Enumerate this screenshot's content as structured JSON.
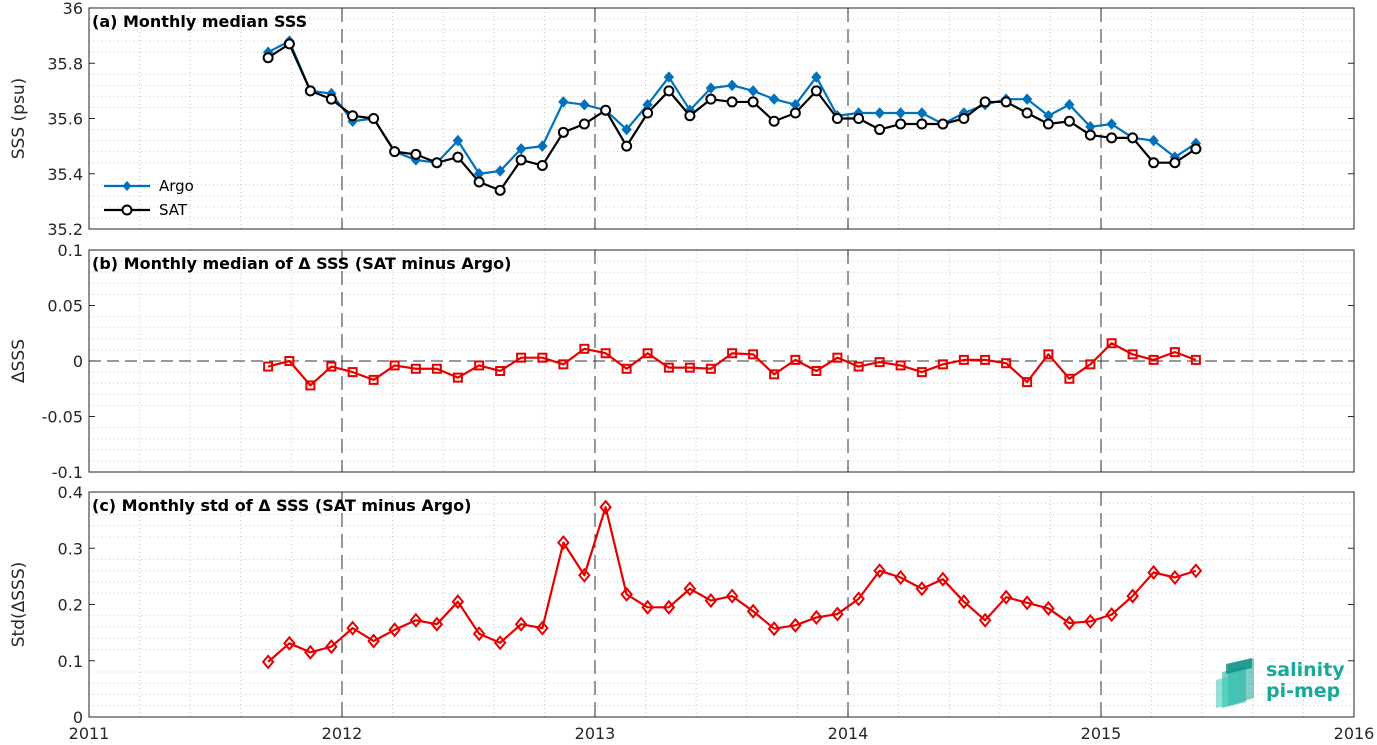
{
  "chart_data": [
    {
      "id": "a",
      "type": "line",
      "title": "(a) Monthly median SSS",
      "ylabel": "SSS (psu)",
      "xlim": [
        2011,
        2016
      ],
      "ylim": [
        35.2,
        36
      ],
      "yticks": [
        "35.2",
        "35.4",
        "35.6",
        "35.8",
        "36"
      ],
      "x": [
        2011.708,
        2011.792,
        2011.875,
        2011.958,
        2012.042,
        2012.125,
        2012.208,
        2012.292,
        2012.375,
        2012.458,
        2012.542,
        2012.625,
        2012.708,
        2012.792,
        2012.875,
        2012.958,
        2013.042,
        2013.125,
        2013.208,
        2013.292,
        2013.375,
        2013.458,
        2013.542,
        2013.625,
        2013.708,
        2013.792,
        2013.875,
        2013.958,
        2014.042,
        2014.125,
        2014.208,
        2014.292,
        2014.375,
        2014.458,
        2014.542,
        2014.625,
        2014.708,
        2014.792,
        2014.875,
        2014.958,
        2015.042,
        2015.125,
        2015.208,
        2015.292,
        2015.375
      ],
      "series": [
        {
          "name": "Argo",
          "color": "#0072bd",
          "marker": "diamond-filled",
          "values": [
            35.84,
            35.88,
            35.7,
            35.69,
            35.59,
            35.6,
            35.48,
            35.45,
            35.44,
            35.52,
            35.4,
            35.41,
            35.49,
            35.5,
            35.66,
            35.65,
            35.63,
            35.56,
            35.65,
            35.75,
            35.63,
            35.71,
            35.72,
            35.7,
            35.67,
            35.65,
            35.75,
            35.61,
            35.62,
            35.62,
            35.62,
            35.62,
            35.58,
            35.62,
            35.65,
            35.67,
            35.67,
            35.61,
            35.65,
            35.57,
            35.58,
            35.53,
            35.52,
            35.46,
            35.51
          ]
        },
        {
          "name": "SAT",
          "color": "#000000",
          "marker": "circle-open",
          "values": [
            35.82,
            35.87,
            35.7,
            35.67,
            35.61,
            35.6,
            35.48,
            35.47,
            35.44,
            35.46,
            35.37,
            35.34,
            35.45,
            35.43,
            35.55,
            35.58,
            35.63,
            35.5,
            35.62,
            35.7,
            35.61,
            35.67,
            35.66,
            35.66,
            35.59,
            35.62,
            35.7,
            35.6,
            35.6,
            35.56,
            35.58,
            35.58,
            35.58,
            35.6,
            35.66,
            35.66,
            35.62,
            35.58,
            35.59,
            35.54,
            35.53,
            35.53,
            35.44,
            35.44,
            35.49
          ]
        }
      ],
      "legend": "lower-left"
    },
    {
      "id": "b",
      "type": "line",
      "title": "(b) Monthly median of Δ SSS (SAT minus Argo)",
      "ylabel": "ΔSSS",
      "xlim": [
        2011,
        2016
      ],
      "ylim": [
        -0.1,
        0.1
      ],
      "yticks": [
        "-0.1",
        "-0.05",
        "0",
        "0.05",
        "0.1"
      ],
      "reference_line": 0,
      "x": [
        2011.708,
        2011.792,
        2011.875,
        2011.958,
        2012.042,
        2012.125,
        2012.208,
        2012.292,
        2012.375,
        2012.458,
        2012.542,
        2012.625,
        2012.708,
        2012.792,
        2012.875,
        2012.958,
        2013.042,
        2013.125,
        2013.208,
        2013.292,
        2013.375,
        2013.458,
        2013.542,
        2013.625,
        2013.708,
        2013.792,
        2013.875,
        2013.958,
        2014.042,
        2014.125,
        2014.208,
        2014.292,
        2014.375,
        2014.458,
        2014.542,
        2014.625,
        2014.708,
        2014.792,
        2014.875,
        2014.958,
        2015.042,
        2015.125,
        2015.208,
        2015.292,
        2015.375
      ],
      "series": [
        {
          "color": "#e60000",
          "marker": "square-open",
          "values": [
            -0.005,
            0.0,
            -0.022,
            -0.005,
            -0.01,
            -0.017,
            -0.004,
            -0.007,
            -0.007,
            -0.015,
            -0.004,
            -0.009,
            0.003,
            0.003,
            -0.003,
            0.011,
            0.007,
            -0.007,
            0.007,
            -0.006,
            -0.006,
            -0.007,
            0.007,
            0.006,
            -0.012,
            0.001,
            -0.009,
            0.003,
            -0.005,
            -0.001,
            -0.004,
            -0.01,
            -0.003,
            0.001,
            0.001,
            -0.002,
            -0.019,
            0.006,
            -0.016,
            -0.003,
            0.016,
            0.006,
            0.001,
            0.008,
            0.001
          ]
        }
      ]
    },
    {
      "id": "c",
      "type": "line",
      "title": "(c) Monthly std of Δ SSS (SAT minus Argo)",
      "ylabel": "Std(ΔSSS)",
      "xlim": [
        2011,
        2016
      ],
      "ylim": [
        0,
        0.4
      ],
      "yticks": [
        "0",
        "0.1",
        "0.2",
        "0.3",
        "0.4"
      ],
      "xticks": [
        "2011",
        "2012",
        "2013",
        "2014",
        "2015",
        "2016"
      ],
      "x": [
        2011.708,
        2011.792,
        2011.875,
        2011.958,
        2012.042,
        2012.125,
        2012.208,
        2012.292,
        2012.375,
        2012.458,
        2012.542,
        2012.625,
        2012.708,
        2012.792,
        2012.875,
        2012.958,
        2013.042,
        2013.125,
        2013.208,
        2013.292,
        2013.375,
        2013.458,
        2013.542,
        2013.625,
        2013.708,
        2013.792,
        2013.875,
        2013.958,
        2014.042,
        2014.125,
        2014.208,
        2014.292,
        2014.375,
        2014.458,
        2014.542,
        2014.625,
        2014.708,
        2014.792,
        2014.875,
        2014.958,
        2015.042,
        2015.125,
        2015.208,
        2015.292,
        2015.375
      ],
      "series": [
        {
          "color": "#e60000",
          "marker": "diamond-open",
          "values": [
            0.098,
            0.131,
            0.115,
            0.125,
            0.158,
            0.135,
            0.155,
            0.172,
            0.165,
            0.205,
            0.148,
            0.132,
            0.165,
            0.158,
            0.31,
            0.252,
            0.373,
            0.218,
            0.195,
            0.195,
            0.228,
            0.207,
            0.215,
            0.188,
            0.157,
            0.163,
            0.177,
            0.183,
            0.21,
            0.26,
            0.248,
            0.228,
            0.245,
            0.205,
            0.172,
            0.213,
            0.203,
            0.193,
            0.167,
            0.17,
            0.182,
            0.215,
            0.257,
            0.248,
            0.26
          ]
        }
      ]
    }
  ],
  "logo": {
    "line1": "salinity",
    "line2": "pi-mep",
    "color": "#1aa89a"
  }
}
